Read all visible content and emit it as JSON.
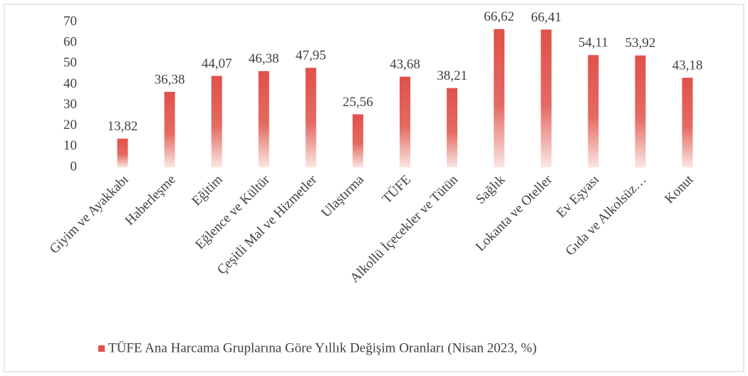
{
  "chart_data": {
    "type": "bar",
    "categories": [
      "Giyim ve Ayakkabı",
      "Haberleşme",
      "Eğitim",
      "Eğlence ve Kültür",
      "Çeşitli Mal ve Hizmetler",
      "Ulaştırma",
      "TÜFE",
      "Alkollü İçecekler ve Tütün",
      "Sağlık",
      "Lokanta ve Oteller",
      "Ev Eşyası",
      "Gıda ve Alkolsüz…",
      "Konut"
    ],
    "series": [
      {
        "name": "TÜFE Ana Harcama Gruplarına Göre Yıllık Değişim Oranları (Nisan 2023, %)",
        "color": "#e0514a",
        "values": [
          13.82,
          36.38,
          44.07,
          46.38,
          47.95,
          25.56,
          43.68,
          38.21,
          66.62,
          66.41,
          54.11,
          53.92,
          43.18
        ],
        "value_labels": [
          "13,82",
          "36,38",
          "44,07",
          "46,38",
          "47,95",
          "25,56",
          "43,68",
          "38,21",
          "66,62",
          "66,41",
          "54,11",
          "53,92",
          "43,18"
        ]
      }
    ],
    "ylim": [
      0,
      70
    ],
    "yticks": [
      0,
      10,
      20,
      30,
      40,
      50,
      60,
      70
    ],
    "grid": false,
    "legend": "bottom"
  }
}
